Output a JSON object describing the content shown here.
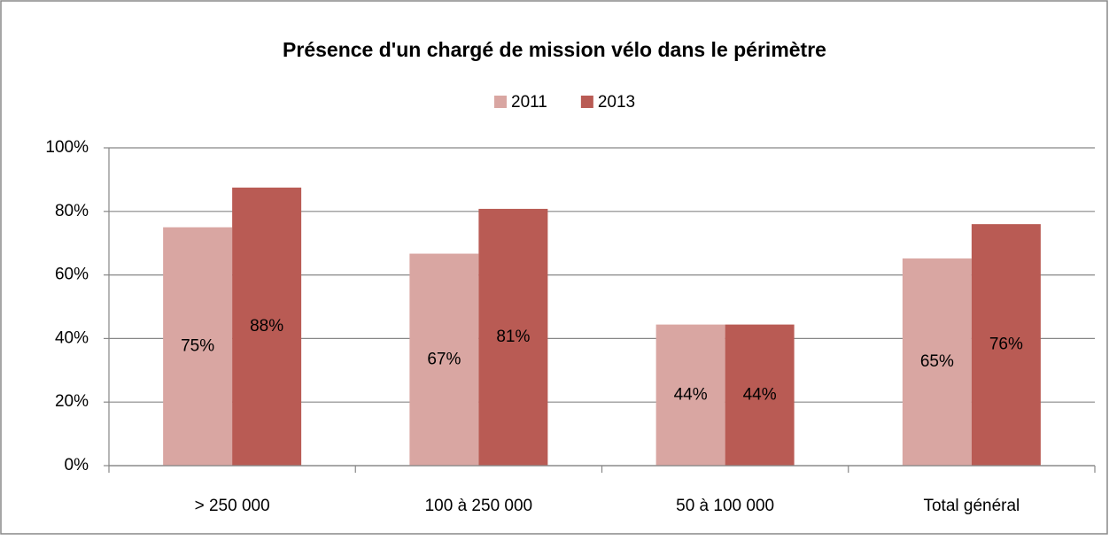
{
  "chart_data": {
    "type": "bar",
    "title": "Présence d'un chargé de mission vélo dans le périmètre",
    "categories": [
      "> 250 000",
      "100 à 250 000",
      "50 à 100 000",
      "Total général"
    ],
    "series": [
      {
        "name": "2011",
        "color": "#d9a6a2",
        "values": [
          75,
          66.7,
          44.4,
          65.2
        ],
        "value_labels": [
          "75%",
          "67%",
          "44%",
          "65%"
        ]
      },
      {
        "name": "2013",
        "color": "#b95b54",
        "values": [
          87.5,
          80.8,
          44.4,
          76
        ],
        "value_labels": [
          "88%",
          "81%",
          "44%",
          "76%"
        ]
      }
    ],
    "ylim": [
      0,
      100
    ],
    "yticks": [
      {
        "value": 0,
        "label": "0%"
      },
      {
        "value": 20,
        "label": "20%"
      },
      {
        "value": 40,
        "label": "40%"
      },
      {
        "value": 60,
        "label": "60%"
      },
      {
        "value": 80,
        "label": "80%"
      },
      {
        "value": 100,
        "label": "100%"
      }
    ],
    "grid": true,
    "legend": "top"
  }
}
